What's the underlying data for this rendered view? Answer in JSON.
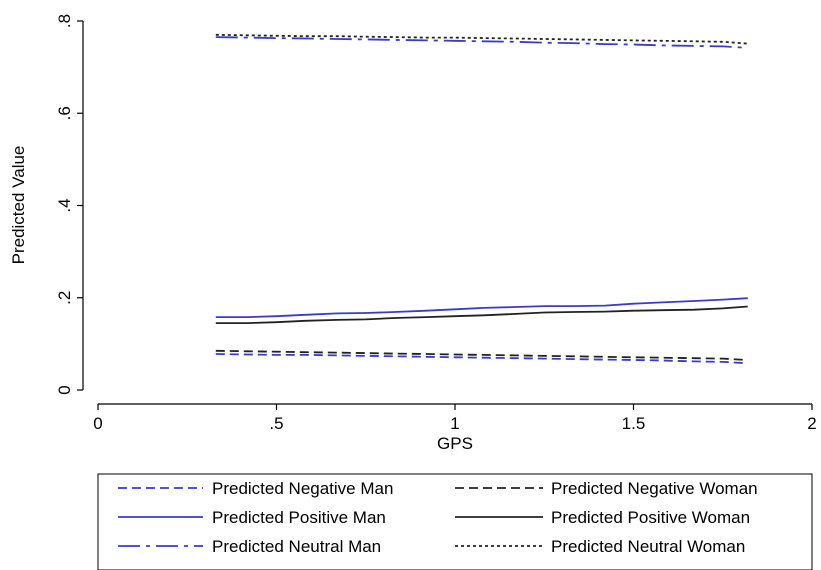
{
  "chart_data": {
    "type": "line",
    "title": "",
    "xlabel": "GPS",
    "ylabel": "Predicted Value",
    "xlim": [
      0,
      2
    ],
    "ylim": [
      0,
      0.8
    ],
    "xticks": [
      0,
      0.5,
      1,
      1.5,
      2
    ],
    "xtick_labels": [
      "0",
      ".5",
      "1",
      "1.5",
      "2"
    ],
    "yticks": [
      0,
      0.2,
      0.4,
      0.6,
      0.8
    ],
    "ytick_labels": [
      "0",
      ".2",
      ".4",
      ".6",
      ".8"
    ],
    "grid": false,
    "legend_position": "bottom",
    "x": [
      0.33,
      0.42,
      0.5,
      0.58,
      0.67,
      0.75,
      0.83,
      0.92,
      1.0,
      1.08,
      1.17,
      1.25,
      1.33,
      1.42,
      1.5,
      1.58,
      1.67,
      1.75,
      1.82
    ],
    "series": [
      {
        "name": "Predicted Negative Man",
        "color": "#3a3acc",
        "dash": "dashed",
        "values": [
          0.078,
          0.077,
          0.076,
          0.076,
          0.075,
          0.074,
          0.073,
          0.072,
          0.071,
          0.07,
          0.069,
          0.068,
          0.067,
          0.066,
          0.065,
          0.064,
          0.062,
          0.061,
          0.058
        ]
      },
      {
        "name": "Predicted Negative Woman",
        "color": "#222222",
        "dash": "dashed",
        "values": [
          0.085,
          0.084,
          0.083,
          0.082,
          0.081,
          0.08,
          0.079,
          0.078,
          0.077,
          0.076,
          0.075,
          0.074,
          0.073,
          0.072,
          0.071,
          0.07,
          0.069,
          0.068,
          0.065
        ]
      },
      {
        "name": "Predicted Positive Man",
        "color": "#3a3acc",
        "dash": "solid",
        "values": [
          0.158,
          0.158,
          0.16,
          0.163,
          0.166,
          0.167,
          0.169,
          0.172,
          0.175,
          0.178,
          0.18,
          0.182,
          0.182,
          0.183,
          0.187,
          0.19,
          0.193,
          0.196,
          0.199
        ]
      },
      {
        "name": "Predicted Positive Woman",
        "color": "#222222",
        "dash": "solid",
        "values": [
          0.145,
          0.145,
          0.147,
          0.15,
          0.152,
          0.153,
          0.156,
          0.158,
          0.16,
          0.162,
          0.165,
          0.168,
          0.169,
          0.17,
          0.172,
          0.173,
          0.174,
          0.177,
          0.181
        ]
      },
      {
        "name": "Predicted Neutral Man",
        "color": "#3a3acc",
        "dash": "longdash",
        "values": [
          0.765,
          0.764,
          0.763,
          0.762,
          0.761,
          0.76,
          0.759,
          0.758,
          0.757,
          0.756,
          0.755,
          0.753,
          0.752,
          0.75,
          0.749,
          0.747,
          0.746,
          0.745,
          0.742
        ]
      },
      {
        "name": "Predicted Neutral Woman",
        "color": "#222222",
        "dash": "dotted",
        "values": [
          0.77,
          0.769,
          0.768,
          0.767,
          0.767,
          0.766,
          0.765,
          0.764,
          0.764,
          0.763,
          0.762,
          0.761,
          0.76,
          0.759,
          0.758,
          0.757,
          0.756,
          0.755,
          0.751
        ]
      }
    ]
  }
}
